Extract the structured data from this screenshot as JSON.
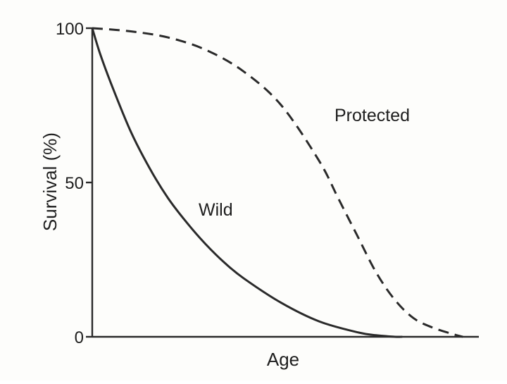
{
  "chart_data": {
    "type": "line",
    "xlabel": "Age",
    "ylabel": "Survival (%)",
    "ylim": [
      0,
      100
    ],
    "xlim": [
      0,
      1
    ],
    "y_ticks": [
      0,
      50,
      100
    ],
    "x_ticks": [],
    "grid": false,
    "legend": "none",
    "series": [
      {
        "name": "Wild",
        "style": "solid",
        "color": "#2a2a2a",
        "x": [
          0,
          0.02,
          0.05,
          0.1,
          0.15,
          0.2,
          0.25,
          0.3,
          0.35,
          0.4,
          0.5,
          0.6,
          0.7,
          0.75,
          0.8,
          0.82
        ],
        "y": [
          100,
          92,
          82,
          67,
          55,
          45,
          37,
          30,
          24,
          19,
          11,
          5,
          1.5,
          0.5,
          0,
          0
        ]
      },
      {
        "name": "Protected",
        "style": "dashed",
        "color": "#2a2a2a",
        "x": [
          0,
          0.1,
          0.2,
          0.3,
          0.4,
          0.5,
          0.6,
          0.65,
          0.7,
          0.75,
          0.8,
          0.85,
          0.9,
          0.95,
          0.98
        ],
        "y": [
          100,
          99,
          97,
          93,
          86,
          75,
          57,
          45,
          33,
          21,
          12,
          6,
          3,
          1,
          0
        ]
      }
    ]
  }
}
